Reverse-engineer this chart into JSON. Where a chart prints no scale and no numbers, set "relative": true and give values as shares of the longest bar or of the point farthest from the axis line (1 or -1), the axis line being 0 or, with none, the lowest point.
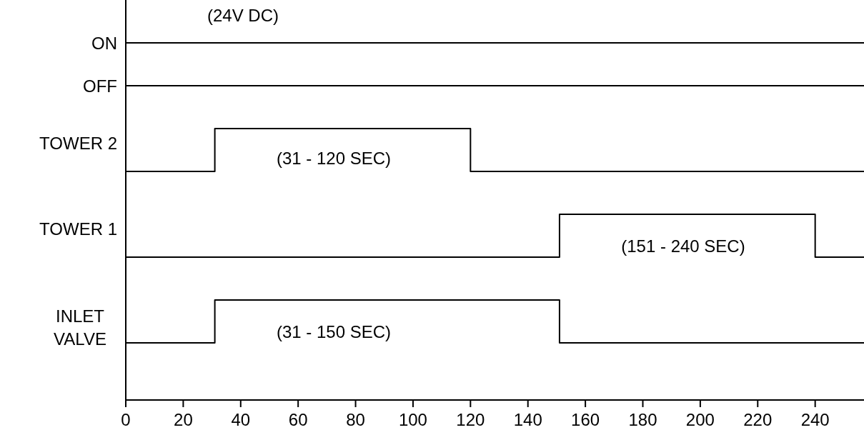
{
  "chart_data": {
    "type": "step",
    "relative": true,
    "xlim": [
      0,
      257
    ],
    "xticks": [
      0,
      20,
      40,
      60,
      80,
      100,
      120,
      140,
      160,
      180,
      200,
      220,
      240
    ],
    "grid": false,
    "marker": "none",
    "line_style": "solid",
    "series": [
      {
        "name": "ON",
        "color": "#000000",
        "x": [
          0,
          257
        ],
        "values": [
          1,
          1
        ]
      },
      {
        "name": "OFF",
        "color": "#000000",
        "x": [
          0,
          257
        ],
        "values": [
          0.88,
          0.88
        ]
      },
      {
        "name": "TOWER 2",
        "color": "#000000",
        "x": [
          0,
          31,
          120,
          257
        ],
        "values": [
          0.64,
          0.76,
          0.64,
          0.64
        ]
      },
      {
        "name": "TOWER 1",
        "color": "#000000",
        "x": [
          0,
          151,
          240,
          257
        ],
        "values": [
          0.4,
          0.52,
          0.4,
          0.4
        ]
      },
      {
        "name": "INLET\nVALVE",
        "color": "#000000",
        "x": [
          0,
          31,
          151,
          257
        ],
        "values": [
          0.16,
          0.28,
          0.16,
          0.16
        ]
      }
    ],
    "annotations": [
      "(24V DC)",
      "(31 - 120 SEC)",
      "(151 - 240 SEC)",
      "(31 - 150 SEC)"
    ]
  }
}
